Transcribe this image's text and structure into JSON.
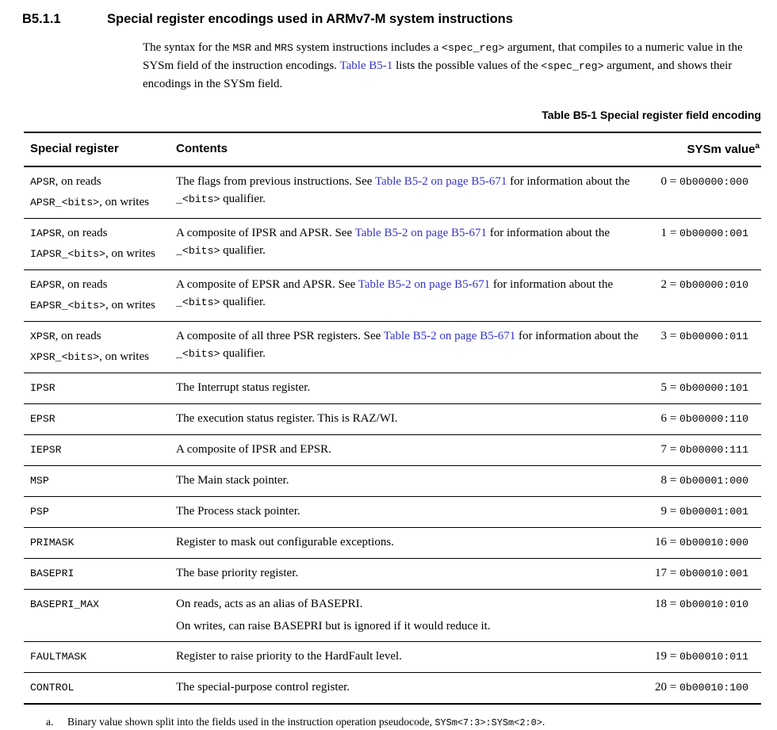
{
  "section": {
    "number": "B5.1.1",
    "title": "Special register encodings used in ARMv7-M system instructions"
  },
  "intro": {
    "segments": [
      {
        "k": "t",
        "v": "The syntax for the "
      },
      {
        "k": "m",
        "v": "MSR"
      },
      {
        "k": "t",
        "v": " and "
      },
      {
        "k": "m",
        "v": "MRS"
      },
      {
        "k": "t",
        "v": " system instructions includes a "
      },
      {
        "k": "m",
        "v": "<spec_reg>"
      },
      {
        "k": "t",
        "v": " argument, that compiles to a numeric value in the SYSm field of the instruction encodings. "
      },
      {
        "k": "l",
        "v": "Table B5-1"
      },
      {
        "k": "t",
        "v": " lists the possible values of the "
      },
      {
        "k": "m",
        "v": "<spec_reg>"
      },
      {
        "k": "t",
        "v": " argument, and shows their encodings in the SYSm field."
      }
    ]
  },
  "table": {
    "caption": "Table B5-1 Special register field encoding",
    "headers": {
      "register": "Special register",
      "contents": "Contents",
      "sysm": "SYSm value",
      "sysm_sup": "a"
    },
    "rows": [
      {
        "register_lines": [
          [
            {
              "k": "m",
              "v": "APSR"
            },
            {
              "k": "t",
              "v": ", on reads"
            }
          ],
          [
            {
              "k": "m",
              "v": "APSR_<bits>"
            },
            {
              "k": "t",
              "v": ", on writes"
            }
          ]
        ],
        "content_lines": [
          [
            {
              "k": "t",
              "v": "The flags from previous instructions. See "
            },
            {
              "k": "l",
              "v": "Table B5-2 on page B5-671"
            },
            {
              "k": "t",
              "v": " for information about the "
            },
            {
              "k": "m",
              "v": "_<bits>"
            },
            {
              "k": "t",
              "v": " qualifier."
            }
          ]
        ],
        "sysm": {
          "dec": "0 = ",
          "bin": "0b00000:000"
        }
      },
      {
        "register_lines": [
          [
            {
              "k": "m",
              "v": "IAPSR"
            },
            {
              "k": "t",
              "v": ", on reads"
            }
          ],
          [
            {
              "k": "m",
              "v": "IAPSR_<bits>"
            },
            {
              "k": "t",
              "v": ", on writes"
            }
          ]
        ],
        "content_lines": [
          [
            {
              "k": "t",
              "v": "A composite of IPSR and APSR. See "
            },
            {
              "k": "l",
              "v": "Table B5-2 on page B5-671"
            },
            {
              "k": "t",
              "v": " for information about the "
            },
            {
              "k": "m",
              "v": "_<bits>"
            },
            {
              "k": "t",
              "v": " qualifier."
            }
          ]
        ],
        "sysm": {
          "dec": "1 = ",
          "bin": "0b00000:001"
        }
      },
      {
        "register_lines": [
          [
            {
              "k": "m",
              "v": "EAPSR"
            },
            {
              "k": "t",
              "v": ", on reads"
            }
          ],
          [
            {
              "k": "m",
              "v": "EAPSR_<bits>"
            },
            {
              "k": "t",
              "v": ", on writes"
            }
          ]
        ],
        "content_lines": [
          [
            {
              "k": "t",
              "v": "A composite of EPSR and APSR. See "
            },
            {
              "k": "l",
              "v": "Table B5-2 on page B5-671"
            },
            {
              "k": "t",
              "v": " for information about the "
            },
            {
              "k": "m",
              "v": "_<bits>"
            },
            {
              "k": "t",
              "v": " qualifier."
            }
          ]
        ],
        "sysm": {
          "dec": "2 = ",
          "bin": "0b00000:010"
        }
      },
      {
        "register_lines": [
          [
            {
              "k": "m",
              "v": "XPSR"
            },
            {
              "k": "t",
              "v": ", on reads"
            }
          ],
          [
            {
              "k": "m",
              "v": "XPSR_<bits>"
            },
            {
              "k": "t",
              "v": ", on writes"
            }
          ]
        ],
        "content_lines": [
          [
            {
              "k": "t",
              "v": "A composite of all three PSR registers. See "
            },
            {
              "k": "l",
              "v": "Table B5-2 on page B5-671"
            },
            {
              "k": "t",
              "v": " for information about the "
            },
            {
              "k": "m",
              "v": "_<bits>"
            },
            {
              "k": "t",
              "v": " qualifier."
            }
          ]
        ],
        "sysm": {
          "dec": "3 = ",
          "bin": "0b00000:011"
        }
      },
      {
        "register_lines": [
          [
            {
              "k": "m",
              "v": "IPSR"
            }
          ]
        ],
        "content_lines": [
          [
            {
              "k": "t",
              "v": "The Interrupt status register."
            }
          ]
        ],
        "sysm": {
          "dec": "5 = ",
          "bin": "0b00000:101"
        }
      },
      {
        "register_lines": [
          [
            {
              "k": "m",
              "v": "EPSR"
            }
          ]
        ],
        "content_lines": [
          [
            {
              "k": "t",
              "v": "The execution status register. This is RAZ/WI."
            }
          ]
        ],
        "sysm": {
          "dec": "6 = ",
          "bin": "0b00000:110"
        }
      },
      {
        "register_lines": [
          [
            {
              "k": "m",
              "v": "IEPSR"
            }
          ]
        ],
        "content_lines": [
          [
            {
              "k": "t",
              "v": "A composite of IPSR and EPSR."
            }
          ]
        ],
        "sysm": {
          "dec": "7 = ",
          "bin": "0b00000:111"
        }
      },
      {
        "register_lines": [
          [
            {
              "k": "m",
              "v": "MSP"
            }
          ]
        ],
        "content_lines": [
          [
            {
              "k": "t",
              "v": "The Main stack pointer."
            }
          ]
        ],
        "sysm": {
          "dec": "8 = ",
          "bin": "0b00001:000"
        }
      },
      {
        "register_lines": [
          [
            {
              "k": "m",
              "v": "PSP"
            }
          ]
        ],
        "content_lines": [
          [
            {
              "k": "t",
              "v": "The Process stack pointer."
            }
          ]
        ],
        "sysm": {
          "dec": "9 = ",
          "bin": "0b00001:001"
        }
      },
      {
        "register_lines": [
          [
            {
              "k": "m",
              "v": "PRIMASK"
            }
          ]
        ],
        "content_lines": [
          [
            {
              "k": "t",
              "v": "Register to mask out configurable exceptions."
            }
          ]
        ],
        "sysm": {
          "dec": "16 = ",
          "bin": "0b00010:000"
        }
      },
      {
        "register_lines": [
          [
            {
              "k": "m",
              "v": "BASEPRI"
            }
          ]
        ],
        "content_lines": [
          [
            {
              "k": "t",
              "v": "The base priority register."
            }
          ]
        ],
        "sysm": {
          "dec": "17 = ",
          "bin": "0b00010:001"
        }
      },
      {
        "register_lines": [
          [
            {
              "k": "m",
              "v": "BASEPRI_MAX"
            }
          ]
        ],
        "content_lines": [
          [
            {
              "k": "t",
              "v": "On reads, acts as an alias of BASEPRI."
            }
          ],
          [
            {
              "k": "t",
              "v": "On writes, can raise BASEPRI but is ignored if it would reduce it."
            }
          ]
        ],
        "sysm": {
          "dec": "18 = ",
          "bin": "0b00010:010"
        }
      },
      {
        "register_lines": [
          [
            {
              "k": "m",
              "v": "FAULTMASK"
            }
          ]
        ],
        "content_lines": [
          [
            {
              "k": "t",
              "v": "Register to raise priority to the HardFault level."
            }
          ]
        ],
        "sysm": {
          "dec": "19 = ",
          "bin": "0b00010:011"
        }
      },
      {
        "register_lines": [
          [
            {
              "k": "m",
              "v": "CONTROL"
            }
          ]
        ],
        "content_lines": [
          [
            {
              "k": "t",
              "v": "The special-purpose control register."
            }
          ]
        ],
        "sysm": {
          "dec": "20 = ",
          "bin": "0b00010:100"
        }
      }
    ],
    "footnote": {
      "marker": "a.",
      "segments": [
        {
          "k": "t",
          "v": "Binary value shown split into the fields used in the instruction operation pseudocode, "
        },
        {
          "k": "m",
          "v": "SYSm<7:3>:SYSm<2:0>"
        },
        {
          "k": "t",
          "v": "."
        }
      ]
    }
  },
  "colors": {
    "link": "#3333cc",
    "text": "#000000",
    "background": "#ffffff"
  }
}
